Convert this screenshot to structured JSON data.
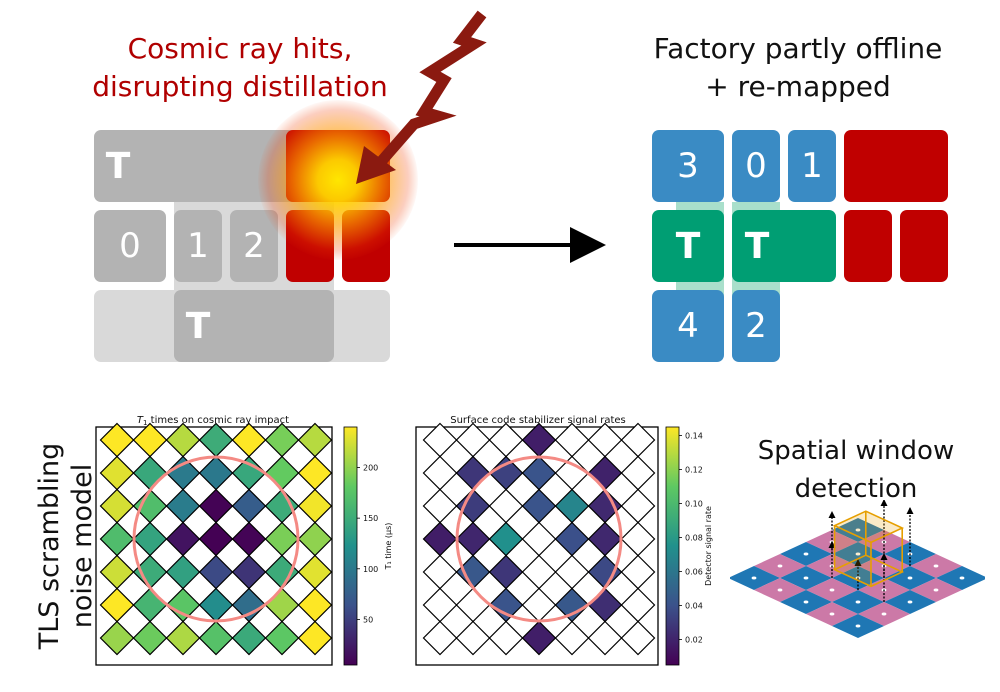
{
  "top_left": {
    "caption_line1": "Cosmic ray hits,",
    "caption_line2": "disrupting distillation",
    "caption_color": "#b00000",
    "labels": {
      "t_top": "T",
      "n0": "0",
      "n1": "1",
      "n2": "2",
      "t_bottom": "T"
    },
    "colors": {
      "block_dark": "#b3b3b3",
      "block_light": "#d9d9d9",
      "hit_red": "#c00000",
      "hit_glow": "#ffd400",
      "bolt": "#8b1a10"
    }
  },
  "top_right": {
    "caption_line1": "Factory partly offline",
    "caption_line2": "+ re-mapped",
    "labels": {
      "n3": "3",
      "n0": "0",
      "n1": "1",
      "t_left": "T",
      "t_right": "T",
      "n4": "4",
      "n2": "2"
    },
    "colors": {
      "blue": "#3a8bc4",
      "green": "#009e73",
      "green_light": "#a9dfcb",
      "red": "#c00000"
    }
  },
  "bottom_left": {
    "rotated_label_line1": "TLS scrambling",
    "rotated_label_line2": "noise model"
  },
  "chart_data": [
    {
      "type": "heatmap",
      "title": "T1 times on cosmic ray impact",
      "title_base": "T",
      "title_sub": "1",
      "title_rest": " times on cosmic ray impact",
      "colorbar_label": "T₁ time (μs)",
      "colorbar_ticks": [
        50,
        100,
        150,
        200
      ],
      "colorbar_range": [
        5,
        240
      ],
      "colormap": "viridis",
      "impact_circle": true
    },
    {
      "type": "heatmap",
      "title": "Surface code stabilizer signal rates",
      "colorbar_label": "Detector signal rate",
      "colorbar_ticks": [
        0.02,
        0.04,
        0.06,
        0.08,
        0.1,
        0.12,
        0.14
      ],
      "colorbar_tick_labels": [
        "0.02",
        "0.04",
        "0.06",
        "0.08",
        "0.10",
        "0.12",
        "0.14"
      ],
      "colorbar_range": [
        0.005,
        0.145
      ],
      "colormap": "viridis",
      "impact_circle": true
    }
  ],
  "bottom_right": {
    "caption_line1": "Spatial window",
    "caption_line2": "detection",
    "colors": {
      "blue": "#1f77b4",
      "pink": "#cc79a7",
      "window": "#e69f00"
    }
  }
}
